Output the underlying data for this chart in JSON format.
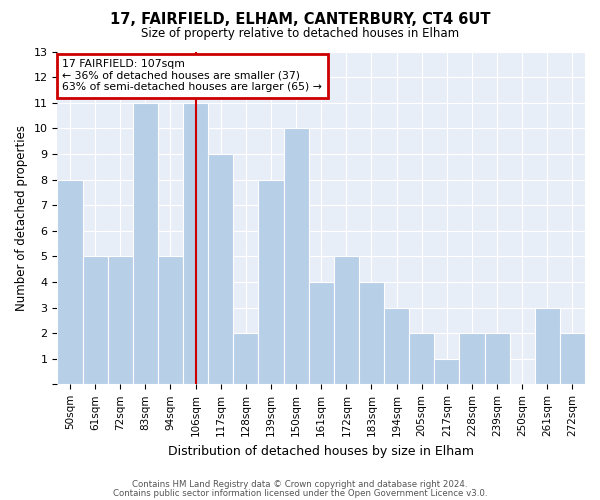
{
  "title1": "17, FAIRFIELD, ELHAM, CANTERBURY, CT4 6UT",
  "title2": "Size of property relative to detached houses in Elham",
  "xlabel": "Distribution of detached houses by size in Elham",
  "ylabel": "Number of detached properties",
  "footnote1": "Contains HM Land Registry data © Crown copyright and database right 2024.",
  "footnote2": "Contains public sector information licensed under the Open Government Licence v3.0.",
  "bins": [
    "50sqm",
    "61sqm",
    "72sqm",
    "83sqm",
    "94sqm",
    "106sqm",
    "117sqm",
    "128sqm",
    "139sqm",
    "150sqm",
    "161sqm",
    "172sqm",
    "183sqm",
    "194sqm",
    "205sqm",
    "217sqm",
    "228sqm",
    "239sqm",
    "250sqm",
    "261sqm",
    "272sqm"
  ],
  "counts": [
    8,
    5,
    5,
    11,
    5,
    11,
    9,
    2,
    8,
    10,
    4,
    5,
    4,
    3,
    2,
    1,
    2,
    2,
    0,
    3,
    2
  ],
  "property_bin_index": 5,
  "annotation_title": "17 FAIRFIELD: 107sqm",
  "annotation_line1": "← 36% of detached houses are smaller (37)",
  "annotation_line2": "63% of semi-detached houses are larger (65) →",
  "bar_color": "#b8cfe8",
  "vline_color": "#cc0000",
  "annotation_box_color": "#cc0000",
  "bg_color": "#e8eef8",
  "ylim": [
    0,
    13
  ],
  "yticks": [
    0,
    1,
    2,
    3,
    4,
    5,
    6,
    7,
    8,
    9,
    10,
    11,
    12,
    13
  ]
}
